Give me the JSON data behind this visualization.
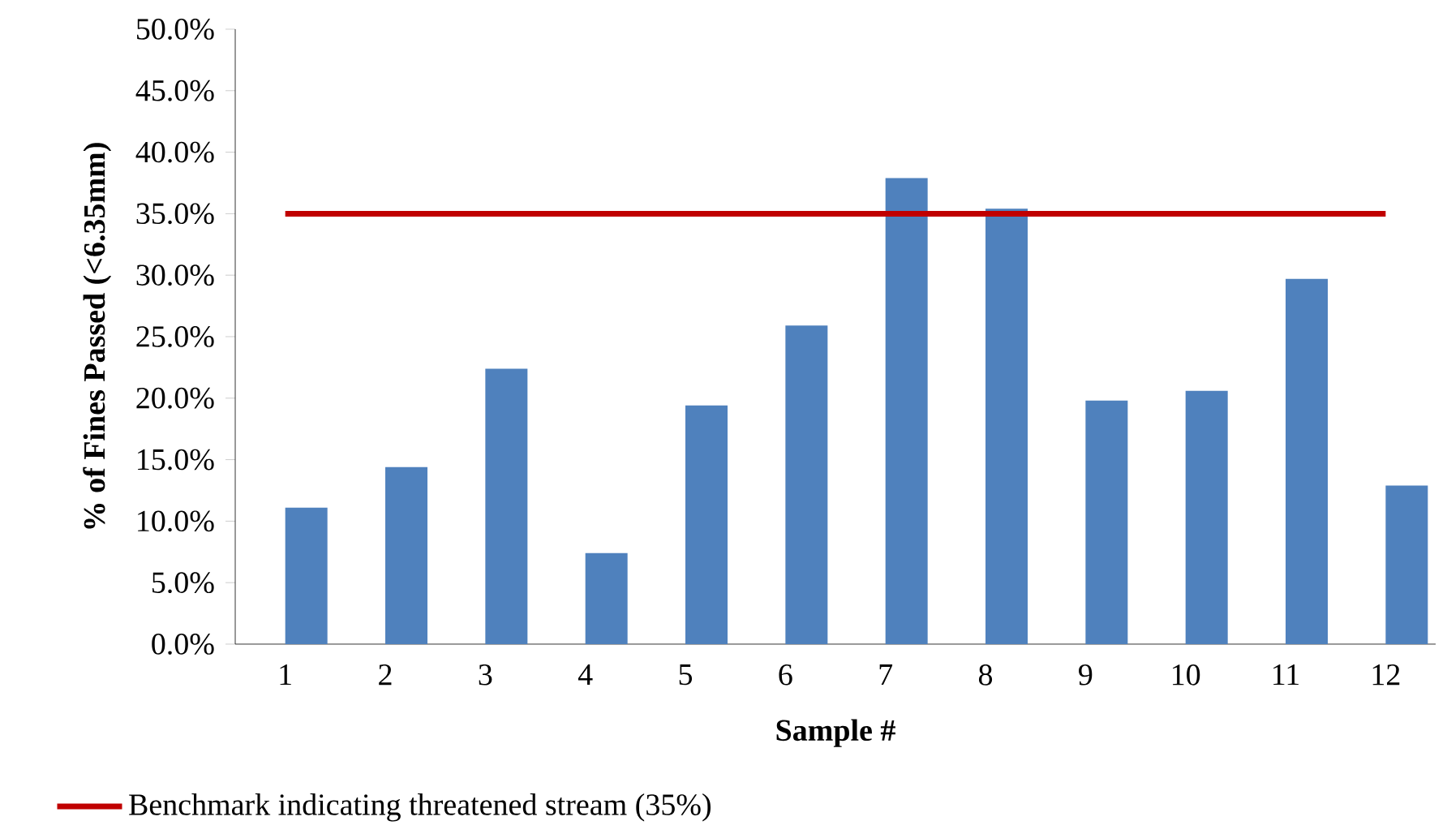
{
  "chart_data": {
    "type": "bar",
    "xlabel": "Sample #",
    "ylabel": "% of Fines Passed (<6.35mm)",
    "categories": [
      "1",
      "2",
      "3",
      "4",
      "5",
      "6",
      "7",
      "8",
      "9",
      "10",
      "11",
      "12"
    ],
    "series": [
      {
        "color": "#4f81bd",
        "values": [
          11.1,
          14.4,
          22.4,
          7.4,
          19.4,
          25.9,
          37.9,
          35.4,
          19.8,
          20.6,
          29.7,
          12.9
        ]
      },
      {
        "type": "line",
        "name": "Benchmark indicating threatened stream (35%)",
        "color": "#c00000",
        "values": [
          35,
          35,
          35,
          35,
          35,
          35,
          35,
          35,
          35,
          35,
          35,
          35
        ]
      }
    ],
    "ylim": [
      0,
      50
    ],
    "yticks": [
      {
        "value": 0,
        "label": "0.0%"
      },
      {
        "value": 5,
        "label": "5.0%"
      },
      {
        "value": 10,
        "label": "10.0%"
      },
      {
        "value": 15,
        "label": "15.0%"
      },
      {
        "value": 20,
        "label": "20.0%"
      },
      {
        "value": 25,
        "label": "25.0%"
      },
      {
        "value": 30,
        "label": "30.0%"
      },
      {
        "value": 35,
        "label": "35.0%"
      },
      {
        "value": 40,
        "label": "40.0%"
      },
      {
        "value": 45,
        "label": "45.0%"
      },
      {
        "value": 50,
        "label": "50.0%"
      }
    ],
    "grid": false,
    "legend": "bottom"
  }
}
